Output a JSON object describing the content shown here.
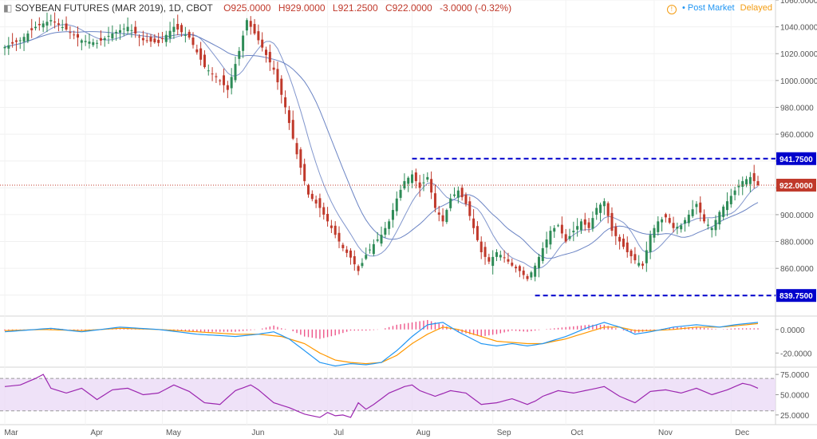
{
  "legend": {
    "symbol_icon": "collapse-icon",
    "title": "SOYBEAN FUTURES (MAR 2019), 1D, CBOT",
    "open": "O925.0000",
    "high": "H929.0000",
    "low": "L921.2500",
    "close": "C922.0000",
    "change": "-3.0000 (-0.32%)"
  },
  "status": {
    "icon": "clock-icon",
    "post_market": "• Post Market",
    "delayed": "Delayed"
  },
  "colors": {
    "up": "#2e8b57",
    "down": "#c0392b",
    "ma": "#6b84c4",
    "level_line": "#0000cc",
    "current_price": "#c0392b",
    "macd": "#2196f3",
    "signal": "#ff9800",
    "hist": "#e91e63",
    "rsi": "#9c27b0",
    "rsi_band": "#e8d5f5"
  },
  "chart_data": [
    {
      "type": "candlestick",
      "title": "SOYBEAN FUTURES (MAR 2019), 1D, CBOT",
      "ylim": [
        825,
        1060
      ],
      "y_ticks": [
        "840.0000",
        "860.0000",
        "880.0000",
        "900.0000",
        "920.0000",
        "940.0000",
        "960.0000",
        "980.0000",
        "1000.0000",
        "1020.0000",
        "1040.0000",
        "1060.0000"
      ],
      "x_labels": [
        "Mar",
        "Apr",
        "May",
        "Jun",
        "Jul",
        "Aug",
        "Sep",
        "Oct",
        "Nov",
        "Dec"
      ],
      "n_days": 197,
      "month_start_index": [
        0,
        21,
        41,
        63,
        84,
        106,
        127,
        146,
        169,
        189
      ],
      "close_path": [
        [
          0,
          1025
        ],
        [
          4,
          1030
        ],
        [
          8,
          1040
        ],
        [
          12,
          1045
        ],
        [
          16,
          1038
        ],
        [
          20,
          1030
        ],
        [
          24,
          1028
        ],
        [
          28,
          1035
        ],
        [
          32,
          1040
        ],
        [
          36,
          1030
        ],
        [
          40,
          1028
        ],
        [
          44,
          1040
        ],
        [
          48,
          1032
        ],
        [
          52,
          1010
        ],
        [
          56,
          1000
        ],
        [
          58,
          993
        ],
        [
          61,
          1022
        ],
        [
          63,
          1045
        ],
        [
          66,
          1030
        ],
        [
          70,
          1008
        ],
        [
          73,
          980
        ],
        [
          76,
          945
        ],
        [
          79,
          915
        ],
        [
          82,
          905
        ],
        [
          85,
          890
        ],
        [
          88,
          875
        ],
        [
          90,
          868
        ],
        [
          92,
          858
        ],
        [
          94,
          870
        ],
        [
          96,
          878
        ],
        [
          98,
          885
        ],
        [
          100,
          895
        ],
        [
          102,
          912
        ],
        [
          104,
          925
        ],
        [
          106,
          930
        ],
        [
          108,
          920
        ],
        [
          110,
          928
        ],
        [
          112,
          905
        ],
        [
          114,
          895
        ],
        [
          116,
          912
        ],
        [
          118,
          918
        ],
        [
          120,
          908
        ],
        [
          122,
          890
        ],
        [
          124,
          872
        ],
        [
          126,
          865
        ],
        [
          128,
          872
        ],
        [
          130,
          868
        ],
        [
          132,
          862
        ],
        [
          134,
          858
        ],
        [
          136,
          852
        ],
        [
          138,
          862
        ],
        [
          140,
          875
        ],
        [
          142,
          888
        ],
        [
          144,
          892
        ],
        [
          146,
          880
        ],
        [
          148,
          888
        ],
        [
          150,
          895
        ],
        [
          152,
          890
        ],
        [
          154,
          905
        ],
        [
          156,
          910
        ],
        [
          158,
          888
        ],
        [
          160,
          880
        ],
        [
          162,
          872
        ],
        [
          164,
          866
        ],
        [
          166,
          862
        ],
        [
          168,
          885
        ],
        [
          170,
          895
        ],
        [
          172,
          898
        ],
        [
          174,
          890
        ],
        [
          176,
          892
        ],
        [
          178,
          900
        ],
        [
          180,
          908
        ],
        [
          182,
          895
        ],
        [
          184,
          890
        ],
        [
          186,
          902
        ],
        [
          188,
          910
        ],
        [
          190,
          918
        ],
        [
          192,
          925
        ],
        [
          194,
          928
        ],
        [
          196,
          922
        ]
      ],
      "levels": [
        {
          "label": "941.7500",
          "value": 941.75,
          "from_index": 106
        },
        {
          "label": "839.7500",
          "value": 839.75,
          "from_index": 138
        }
      ],
      "current_price": {
        "label": "922.0000",
        "value": 922.0
      },
      "last_candle": {
        "open": 925.0,
        "high": 929.0,
        "low": 921.25,
        "close": 922.0
      }
    },
    {
      "type": "line",
      "name": "MACD",
      "ylim": [
        -32,
        10
      ],
      "y_ticks": [
        "0.0000",
        "-20.0000"
      ],
      "macd_path": [
        [
          0,
          -2
        ],
        [
          8,
          0
        ],
        [
          12,
          1
        ],
        [
          20,
          -2
        ],
        [
          30,
          2
        ],
        [
          40,
          0
        ],
        [
          50,
          -4
        ],
        [
          60,
          -6
        ],
        [
          66,
          -4
        ],
        [
          70,
          -2
        ],
        [
          74,
          -8
        ],
        [
          78,
          -18
        ],
        [
          82,
          -28
        ],
        [
          86,
          -31
        ],
        [
          90,
          -29
        ],
        [
          94,
          -30
        ],
        [
          98,
          -28
        ],
        [
          102,
          -18
        ],
        [
          106,
          -6
        ],
        [
          110,
          4
        ],
        [
          114,
          6
        ],
        [
          118,
          -2
        ],
        [
          124,
          -12
        ],
        [
          128,
          -14
        ],
        [
          132,
          -12
        ],
        [
          136,
          -14
        ],
        [
          140,
          -12
        ],
        [
          146,
          -6
        ],
        [
          152,
          2
        ],
        [
          156,
          6
        ],
        [
          160,
          2
        ],
        [
          164,
          -4
        ],
        [
          168,
          -2
        ],
        [
          174,
          2
        ],
        [
          180,
          4
        ],
        [
          186,
          2
        ],
        [
          190,
          4
        ],
        [
          196,
          6
        ]
      ],
      "signal_path": [
        [
          0,
          -1
        ],
        [
          10,
          0
        ],
        [
          20,
          -1
        ],
        [
          30,
          1
        ],
        [
          40,
          0
        ],
        [
          50,
          -2
        ],
        [
          60,
          -4
        ],
        [
          66,
          -4
        ],
        [
          72,
          -6
        ],
        [
          78,
          -12
        ],
        [
          82,
          -20
        ],
        [
          86,
          -26
        ],
        [
          90,
          -28
        ],
        [
          94,
          -29
        ],
        [
          98,
          -28
        ],
        [
          102,
          -22
        ],
        [
          106,
          -12
        ],
        [
          110,
          -4
        ],
        [
          114,
          2
        ],
        [
          118,
          0
        ],
        [
          124,
          -6
        ],
        [
          128,
          -10
        ],
        [
          132,
          -11
        ],
        [
          136,
          -12
        ],
        [
          140,
          -12
        ],
        [
          146,
          -8
        ],
        [
          152,
          -2
        ],
        [
          156,
          2
        ],
        [
          160,
          2
        ],
        [
          164,
          -1
        ],
        [
          168,
          -1
        ],
        [
          174,
          0
        ],
        [
          180,
          2
        ],
        [
          186,
          2
        ],
        [
          190,
          3
        ],
        [
          196,
          5
        ]
      ]
    },
    {
      "type": "line",
      "name": "RSI",
      "ylim": [
        15,
        82
      ],
      "y_ticks": [
        "75.0000",
        "50.0000",
        "25.0000"
      ],
      "upper_band": 70,
      "lower_band": 30,
      "rsi_path": [
        [
          0,
          60
        ],
        [
          4,
          62
        ],
        [
          8,
          70
        ],
        [
          10,
          75
        ],
        [
          12,
          58
        ],
        [
          16,
          52
        ],
        [
          20,
          58
        ],
        [
          24,
          44
        ],
        [
          28,
          56
        ],
        [
          32,
          58
        ],
        [
          36,
          50
        ],
        [
          40,
          52
        ],
        [
          44,
          62
        ],
        [
          48,
          54
        ],
        [
          52,
          40
        ],
        [
          56,
          38
        ],
        [
          60,
          55
        ],
        [
          64,
          62
        ],
        [
          66,
          56
        ],
        [
          70,
          40
        ],
        [
          74,
          34
        ],
        [
          78,
          26
        ],
        [
          82,
          22
        ],
        [
          84,
          28
        ],
        [
          86,
          24
        ],
        [
          88,
          25
        ],
        [
          90,
          22
        ],
        [
          92,
          40
        ],
        [
          94,
          32
        ],
        [
          96,
          38
        ],
        [
          98,
          45
        ],
        [
          100,
          52
        ],
        [
          104,
          60
        ],
        [
          106,
          62
        ],
        [
          108,
          55
        ],
        [
          112,
          48
        ],
        [
          116,
          55
        ],
        [
          120,
          52
        ],
        [
          124,
          38
        ],
        [
          128,
          40
        ],
        [
          132,
          45
        ],
        [
          136,
          38
        ],
        [
          138,
          42
        ],
        [
          140,
          48
        ],
        [
          144,
          55
        ],
        [
          148,
          52
        ],
        [
          152,
          56
        ],
        [
          156,
          60
        ],
        [
          160,
          48
        ],
        [
          164,
          40
        ],
        [
          168,
          54
        ],
        [
          172,
          56
        ],
        [
          176,
          52
        ],
        [
          180,
          58
        ],
        [
          184,
          50
        ],
        [
          188,
          56
        ],
        [
          190,
          60
        ],
        [
          192,
          64
        ],
        [
          194,
          62
        ],
        [
          196,
          58
        ]
      ]
    }
  ]
}
